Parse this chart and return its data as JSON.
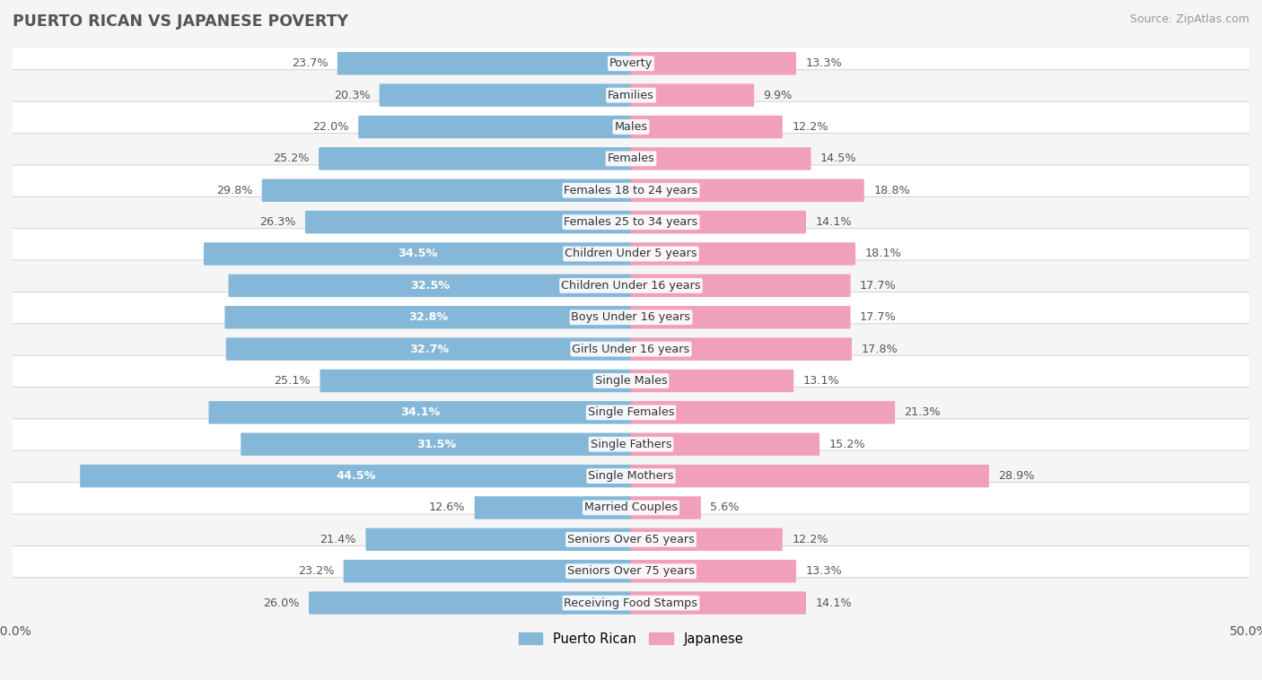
{
  "title": "PUERTO RICAN VS JAPANESE POVERTY",
  "source": "Source: ZipAtlas.com",
  "categories": [
    "Poverty",
    "Families",
    "Males",
    "Females",
    "Females 18 to 24 years",
    "Females 25 to 34 years",
    "Children Under 5 years",
    "Children Under 16 years",
    "Boys Under 16 years",
    "Girls Under 16 years",
    "Single Males",
    "Single Females",
    "Single Fathers",
    "Single Mothers",
    "Married Couples",
    "Seniors Over 65 years",
    "Seniors Over 75 years",
    "Receiving Food Stamps"
  ],
  "puerto_rican": [
    23.7,
    20.3,
    22.0,
    25.2,
    29.8,
    26.3,
    34.5,
    32.5,
    32.8,
    32.7,
    25.1,
    34.1,
    31.5,
    44.5,
    12.6,
    21.4,
    23.2,
    26.0
  ],
  "japanese": [
    13.3,
    9.9,
    12.2,
    14.5,
    18.8,
    14.1,
    18.1,
    17.7,
    17.7,
    17.8,
    13.1,
    21.3,
    15.2,
    28.9,
    5.6,
    12.2,
    13.3,
    14.1
  ],
  "puerto_rican_color": "#85b8d8",
  "japanese_color": "#f0a0b8",
  "row_bg_even": "#f5f5f5",
  "row_bg_odd": "#ffffff",
  "background_color": "#f5f5f5",
  "axis_limit": 50.0,
  "bar_height": 0.62,
  "label_fontsize": 9.2,
  "value_fontsize": 9.2,
  "title_fontsize": 12.5,
  "source_fontsize": 9,
  "inside_threshold": 30.0
}
